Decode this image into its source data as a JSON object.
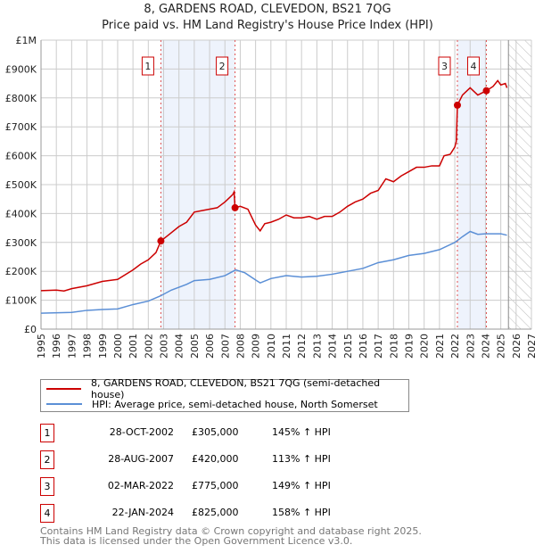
{
  "title": "8, GARDENS ROAD, CLEVEDON, BS21 7QG",
  "subtitle": "Price paid vs. HM Land Registry's House Price Index (HPI)",
  "chart_data": {
    "type": "line",
    "xlim": [
      1995,
      2027
    ],
    "ylim": [
      0,
      1000000
    ],
    "yticks": [
      {
        "v": 0,
        "label": "£0"
      },
      {
        "v": 100000,
        "label": "£100K"
      },
      {
        "v": 200000,
        "label": "£200K"
      },
      {
        "v": 300000,
        "label": "£300K"
      },
      {
        "v": 400000,
        "label": "£400K"
      },
      {
        "v": 500000,
        "label": "£500K"
      },
      {
        "v": 600000,
        "label": "£600K"
      },
      {
        "v": 700000,
        "label": "£700K"
      },
      {
        "v": 800000,
        "label": "£800K"
      },
      {
        "v": 900000,
        "label": "£900K"
      },
      {
        "v": 1000000,
        "label": "£1M"
      }
    ],
    "xticks": [
      "1995",
      "1996",
      "1997",
      "1998",
      "1999",
      "2000",
      "2001",
      "2002",
      "2003",
      "2004",
      "2005",
      "2006",
      "2007",
      "2008",
      "2009",
      "2010",
      "2011",
      "2012",
      "2013",
      "2014",
      "2015",
      "2016",
      "2017",
      "2018",
      "2019",
      "2020",
      "2021",
      "2022",
      "2023",
      "2024",
      "2025",
      "2026",
      "2027"
    ],
    "forecast_start": 2025.5,
    "shaded_ranges": [
      [
        2002.82,
        2007.66
      ],
      [
        2022.17,
        2024.06
      ]
    ],
    "series": [
      {
        "name": "8, GARDENS ROAD, CLEVEDON, BS21 7QG (semi-detached house)",
        "color": "#cc0000",
        "x": [
          1995,
          1996,
          1996.5,
          1997,
          1998,
          1999,
          2000,
          2001,
          2001.5,
          2002,
          2002.5,
          2002.82,
          2003.3,
          2004,
          2004.5,
          2005,
          2005.5,
          2006,
          2006.5,
          2007,
          2007.5,
          2007.6,
          2007.66,
          2008,
          2008.5,
          2009,
          2009.3,
          2009.6,
          2010,
          2010.5,
          2011,
          2011.5,
          2012,
          2012.5,
          2013,
          2013.5,
          2014,
          2014.5,
          2015,
          2015.5,
          2016,
          2016.5,
          2017,
          2017.5,
          2018,
          2018.5,
          2019,
          2019.5,
          2020,
          2020.5,
          2021,
          2021.3,
          2021.7,
          2022.0,
          2022.1,
          2022.17,
          2022.5,
          2023,
          2023.5,
          2024.06,
          2024.5,
          2024.8,
          2025,
          2025.3,
          2025.4
        ],
        "y": [
          133000,
          135000,
          132000,
          140000,
          150000,
          165000,
          172000,
          205000,
          225000,
          240000,
          265000,
          305000,
          325000,
          355000,
          370000,
          405000,
          410000,
          415000,
          420000,
          440000,
          465000,
          475000,
          420000,
          425000,
          415000,
          360000,
          340000,
          365000,
          370000,
          380000,
          395000,
          385000,
          385000,
          390000,
          380000,
          390000,
          390000,
          405000,
          425000,
          440000,
          450000,
          470000,
          480000,
          520000,
          510000,
          530000,
          545000,
          560000,
          560000,
          565000,
          565000,
          600000,
          605000,
          630000,
          650000,
          775000,
          810000,
          835000,
          810000,
          825000,
          840000,
          860000,
          845000,
          850000,
          835000
        ]
      },
      {
        "name": "HPI: Average price, semi-detached house, North Somerset",
        "color": "#5b8fd6",
        "x": [
          1995,
          1997,
          1998,
          1999,
          2000,
          2001,
          2002,
          2002.8,
          2003.5,
          2004.5,
          2005,
          2006,
          2007,
          2007.7,
          2008.3,
          2009,
          2009.3,
          2010,
          2011,
          2012,
          2013,
          2014,
          2015,
          2016,
          2017,
          2018,
          2019,
          2020,
          2021,
          2022,
          2022.5,
          2023,
          2023.5,
          2024,
          2025,
          2025.4
        ],
        "y": [
          55000,
          58000,
          65000,
          68000,
          70000,
          85000,
          97000,
          115000,
          135000,
          155000,
          168000,
          172000,
          185000,
          205000,
          195000,
          170000,
          160000,
          175000,
          185000,
          180000,
          183000,
          190000,
          200000,
          210000,
          230000,
          240000,
          255000,
          262000,
          275000,
          300000,
          320000,
          338000,
          328000,
          330000,
          330000,
          325000
        ]
      }
    ],
    "sales": [
      {
        "label": "1",
        "x": 2002.82,
        "y": 305000,
        "date": "28-OCT-2002",
        "price": "£305,000",
        "hpi": "145% ↑ HPI"
      },
      {
        "label": "2",
        "x": 2007.66,
        "y": 420000,
        "date": "28-AUG-2007",
        "price": "£420,000",
        "hpi": "113% ↑ HPI"
      },
      {
        "label": "3",
        "x": 2022.17,
        "y": 775000,
        "date": "02-MAR-2022",
        "price": "£775,000",
        "hpi": "149% ↑ HPI"
      },
      {
        "label": "4",
        "x": 2024.06,
        "y": 825000,
        "date": "22-JAN-2024",
        "price": "£825,000",
        "hpi": "158% ↑ HPI"
      }
    ]
  },
  "legend": {
    "property": "8, GARDENS ROAD, CLEVEDON, BS21 7QG (semi-detached house)",
    "hpi": "HPI: Average price, semi-detached house, North Somerset"
  },
  "footer": {
    "line1": "Contains HM Land Registry data © Crown copyright and database right 2025.",
    "line2": "This data is licensed under the Open Government Licence v3.0."
  }
}
